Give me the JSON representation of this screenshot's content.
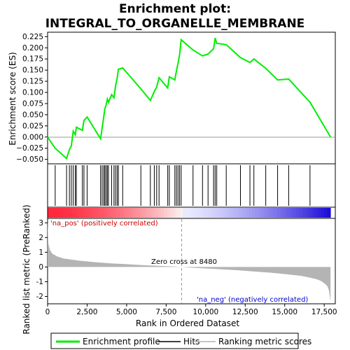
{
  "chart_data": {
    "type": "line",
    "title_line1": "Enrichment plot:",
    "title_line2": "INTEGRAL_TO_ORGANELLE_MEMBRANE",
    "top_panel": {
      "ylabel": "Enrichment score (ES)",
      "ylim": [
        -0.06,
        0.235
      ],
      "yticks": [
        -0.05,
        -0.025,
        0.0,
        0.025,
        0.05,
        0.075,
        0.1,
        0.125,
        0.15,
        0.175,
        0.2,
        0.225
      ],
      "ytick_labels": [
        "−0.050",
        "−0.025",
        "0.000",
        "0.025",
        "0.050",
        "0.075",
        "0.100",
        "0.125",
        "0.150",
        "0.175",
        "0.200",
        "0.225"
      ],
      "series": [
        {
          "name": "Enrichment profile",
          "color": "#00ee00",
          "x": [
            0,
            480,
            1200,
            1380,
            1500,
            1620,
            1750,
            1820,
            2200,
            2300,
            2500,
            3350,
            3450,
            3550,
            3620,
            3700,
            3780,
            3850,
            4050,
            4200,
            4300,
            4400,
            4480,
            4750,
            5900,
            6500,
            6750,
            6900,
            7050,
            7600,
            7700,
            8050,
            8150,
            8250,
            8350,
            8450,
            9200,
            9800,
            10150,
            10500,
            10600,
            10700,
            11300,
            12200,
            12800,
            13050,
            13800,
            14550,
            15250,
            16600,
            17900
          ],
          "y": [
            0.0,
            -0.025,
            -0.048,
            -0.028,
            -0.02,
            0.013,
            0.005,
            0.022,
            0.015,
            0.037,
            0.045,
            -0.004,
            0.02,
            0.045,
            0.063,
            0.072,
            0.085,
            0.078,
            0.095,
            0.088,
            0.115,
            0.132,
            0.152,
            0.155,
            0.108,
            0.082,
            0.102,
            0.112,
            0.133,
            0.11,
            0.135,
            0.128,
            0.148,
            0.165,
            0.185,
            0.218,
            0.195,
            0.182,
            0.186,
            0.198,
            0.222,
            0.21,
            0.207,
            0.178,
            0.167,
            0.175,
            0.154,
            0.128,
            0.13,
            0.078,
            0.0
          ]
        }
      ],
      "hits": [
        480,
        1200,
        1380,
        1500,
        1620,
        1750,
        1820,
        2200,
        2300,
        2500,
        3350,
        3450,
        3550,
        3620,
        3700,
        3780,
        3850,
        4050,
        4200,
        4300,
        4400,
        4480,
        4750,
        5900,
        6500,
        6750,
        6900,
        7050,
        7600,
        7700,
        8050,
        8150,
        8250,
        8350,
        8450,
        9200,
        9800,
        10150,
        10500,
        10600,
        10700,
        11300,
        12200,
        12800,
        13050,
        13800,
        14550,
        15250,
        16600
      ]
    },
    "bottom_panel": {
      "ylabel": "Ranked list metric (PreRanked)",
      "xlabel": "Rank in Ordered Dataset",
      "ylim": [
        -2.5,
        3.3
      ],
      "yticks": [
        -2,
        -1,
        0,
        1,
        2,
        3
      ],
      "ytick_labels": [
        "-2",
        "-1",
        "0",
        "1",
        "2",
        "3"
      ],
      "xlim": [
        0,
        18200
      ],
      "xticks": [
        0,
        2500,
        5000,
        7500,
        10000,
        12500,
        15000,
        17500
      ],
      "xtick_labels": [
        "0",
        "2,500",
        "5,000",
        "7,500",
        "10,000",
        "12,500",
        "15,000",
        "17,500"
      ],
      "metric_profile": {
        "x": [
          0,
          50,
          150,
          300,
          600,
          1000,
          2000,
          3000,
          4000,
          5000,
          6000,
          7000,
          8000,
          8480,
          9000,
          10000,
          11000,
          12000,
          13000,
          14000,
          15000,
          16000,
          16500,
          17000,
          17300,
          17500,
          17700,
          17800,
          17900
        ],
        "y": [
          3.25,
          1.6,
          1.15,
          0.9,
          0.72,
          0.58,
          0.43,
          0.33,
          0.25,
          0.19,
          0.13,
          0.08,
          0.03,
          0.0,
          -0.04,
          -0.1,
          -0.16,
          -0.22,
          -0.3,
          -0.38,
          -0.48,
          -0.6,
          -0.7,
          -0.82,
          -0.95,
          -1.1,
          -1.3,
          -1.6,
          -2.35
        ]
      },
      "zero_cross_label": "Zero cross at 8480",
      "zero_cross": 8480,
      "pos_label": "'na_pos' (positively correlated)",
      "neg_label": "'na_neg' (negatively correlated)"
    },
    "n_genes": 17900,
    "legend": {
      "entries": [
        "Enrichment profile",
        "Hits",
        "Ranking metric scores"
      ]
    }
  },
  "colors": {
    "profile": "#00ee00",
    "hits": "#000000",
    "metric_fill": "#b4b4b4",
    "grid_line": "#d0d0d0",
    "positive": "#ff0000",
    "negative": "#0000ff",
    "zero_cross": "#999999"
  }
}
